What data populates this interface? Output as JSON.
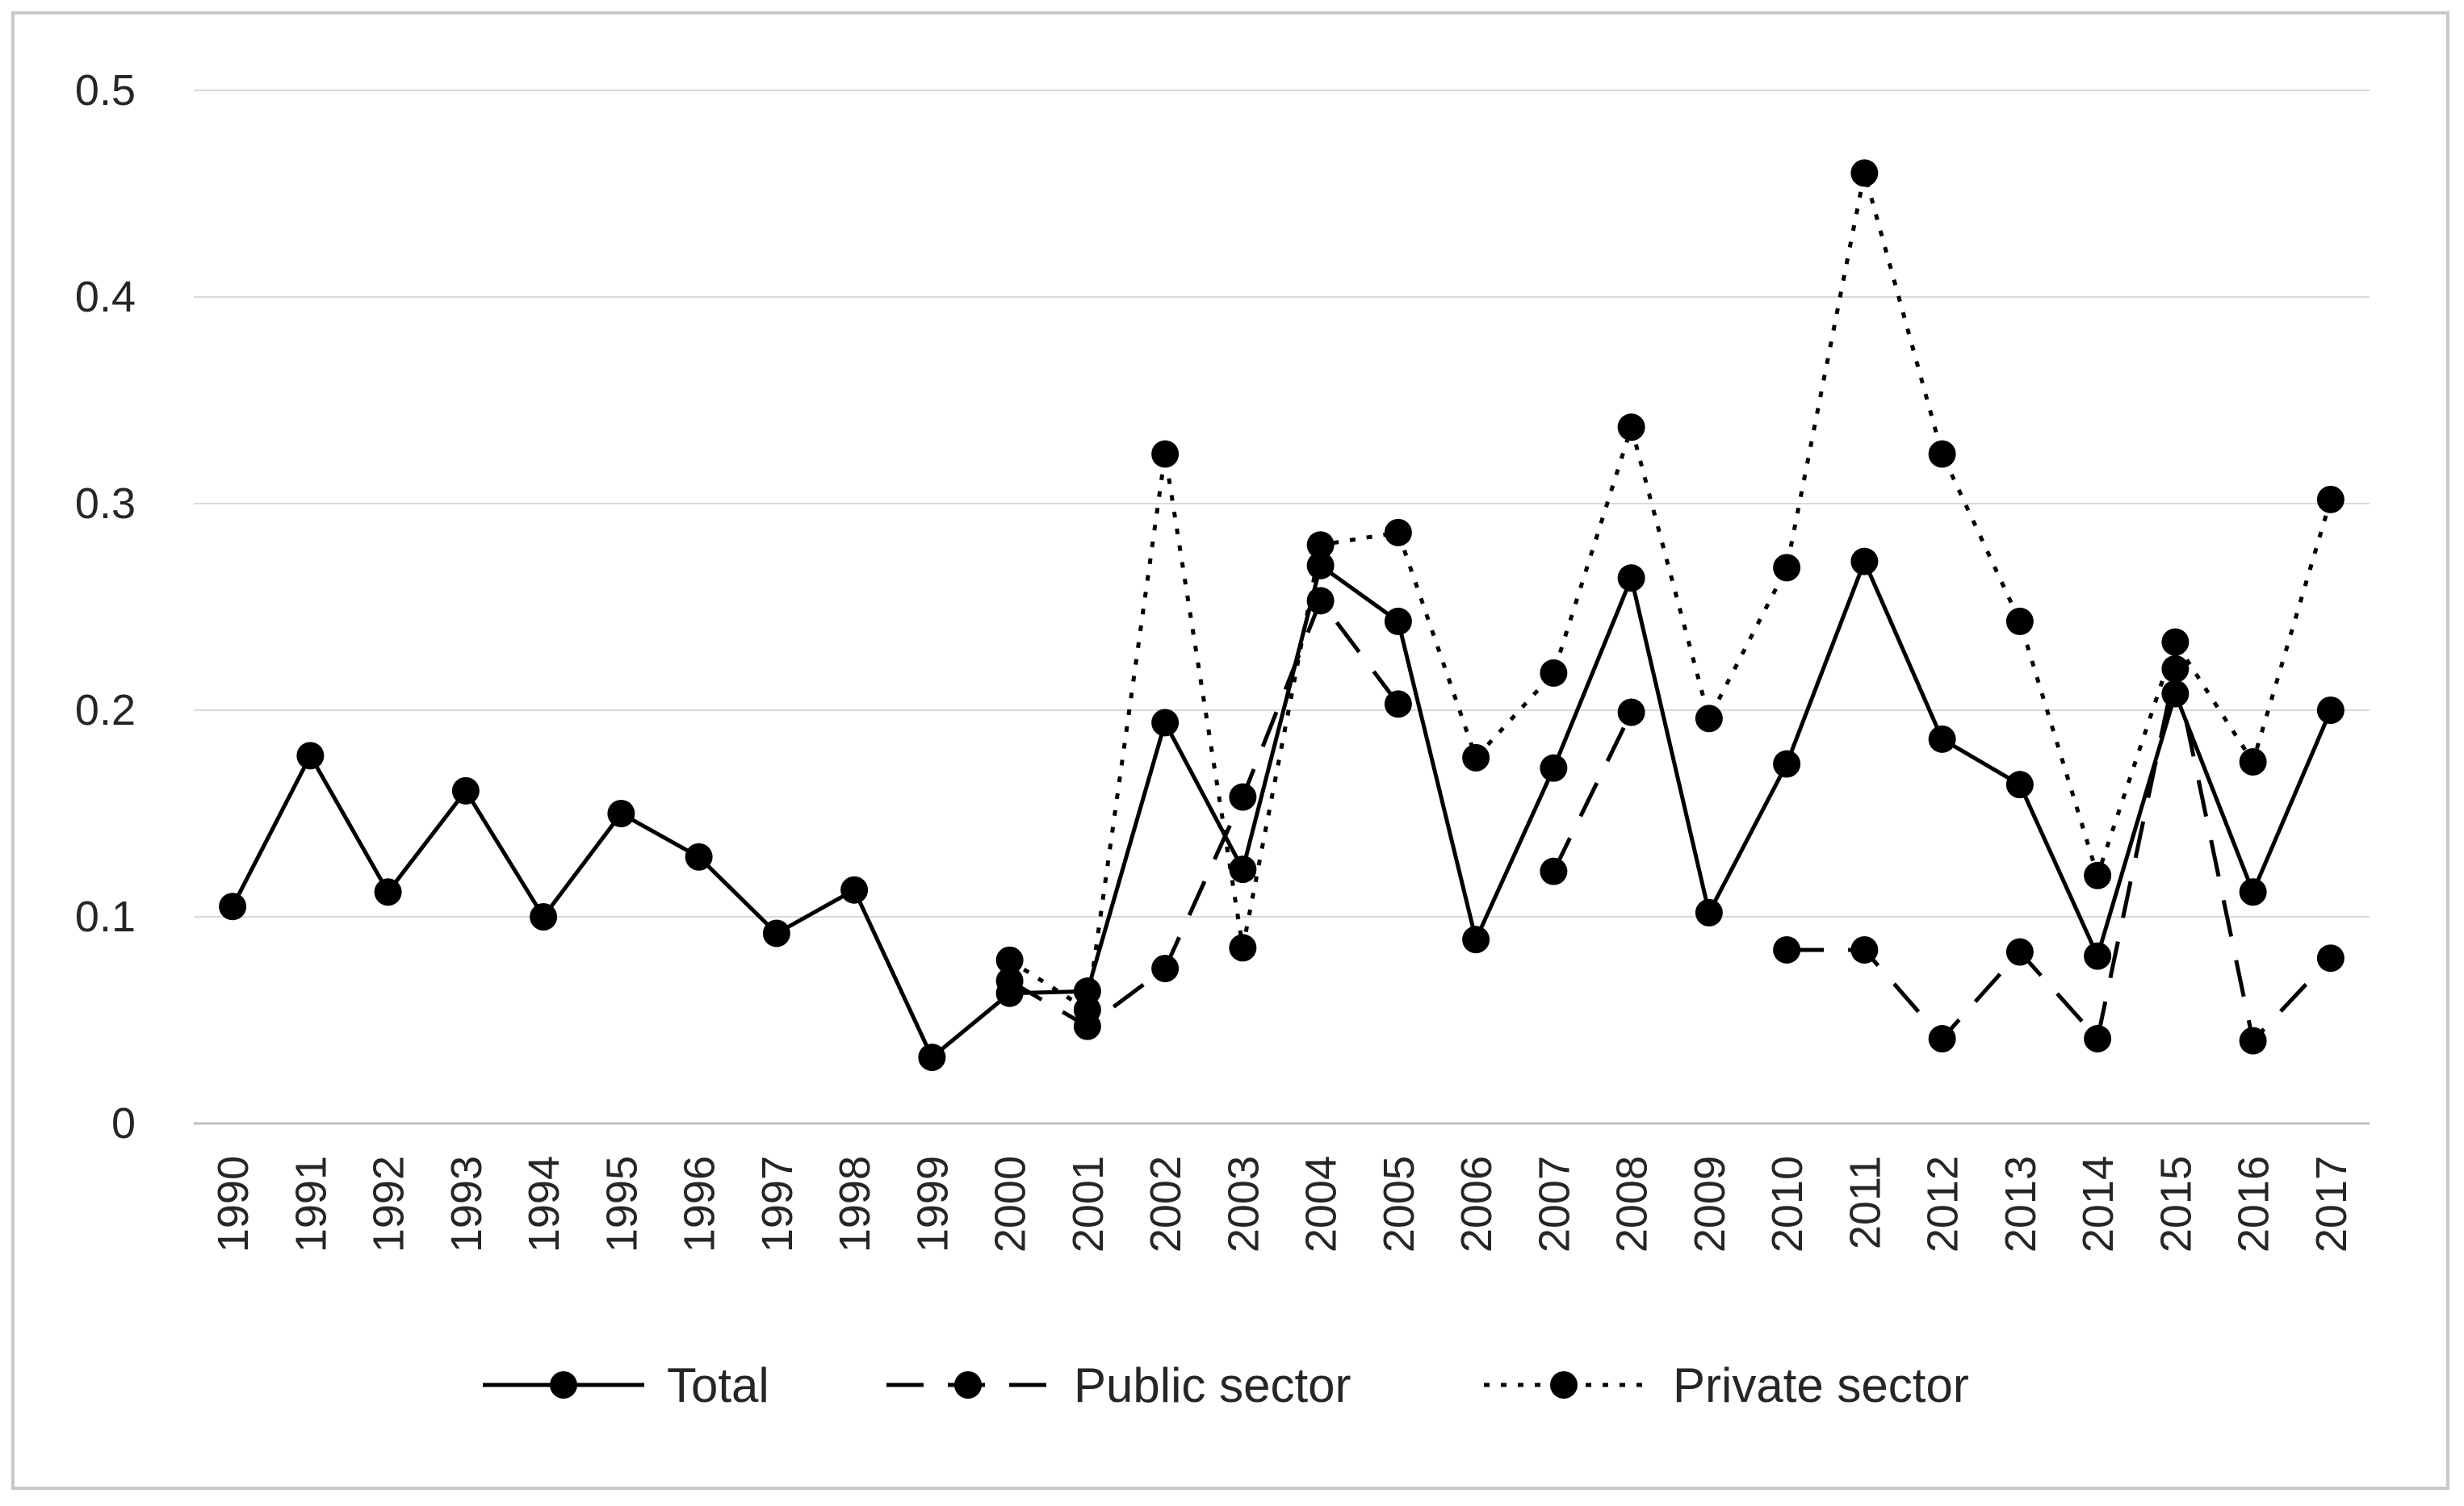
{
  "chart_data": {
    "type": "line",
    "title": "",
    "xlabel": "",
    "ylabel": "",
    "x": [
      "1990",
      "1991",
      "1992",
      "1993",
      "1994",
      "1995",
      "1996",
      "1997",
      "1998",
      "1999",
      "2000",
      "2001",
      "2002",
      "2003",
      "2004",
      "2005",
      "2006",
      "2007",
      "2008",
      "2009",
      "2010",
      "2011",
      "2012",
      "2013",
      "2014",
      "2015",
      "2016",
      "2017"
    ],
    "ylim": [
      0,
      0.5
    ],
    "yticks": [
      "0",
      "0.1",
      "0.2",
      "0.3",
      "0.4",
      "0.5"
    ],
    "ytick_values": [
      0,
      0.1,
      0.2,
      0.3,
      0.4,
      0.5
    ],
    "grid": "horizontal",
    "legend_position": "bottom",
    "series": [
      {
        "name": "Total",
        "line_style": "solid",
        "color": "#000000",
        "values": [
          0.105,
          0.178,
          0.112,
          0.161,
          0.1,
          0.15,
          0.129,
          0.092,
          0.113,
          0.032,
          0.063,
          0.064,
          0.194,
          0.123,
          0.27,
          0.243,
          0.089,
          0.172,
          0.264,
          0.102,
          0.174,
          0.272,
          0.186,
          0.164,
          0.081,
          0.208,
          0.112,
          0.2
        ]
      },
      {
        "name": "Public sector",
        "line_style": "dashed",
        "color": "#000000",
        "values": [
          null,
          null,
          null,
          null,
          null,
          null,
          null,
          null,
          null,
          null,
          0.069,
          0.047,
          0.075,
          0.158,
          0.253,
          0.203,
          null,
          0.122,
          0.199,
          null,
          0.084,
          0.084,
          0.041,
          0.083,
          0.041,
          0.22,
          0.04,
          0.08
        ]
      },
      {
        "name": "Private sector",
        "line_style": "dotted",
        "color": "#000000",
        "values": [
          null,
          null,
          null,
          null,
          null,
          null,
          null,
          null,
          null,
          null,
          0.079,
          0.055,
          0.324,
          0.085,
          0.28,
          0.286,
          0.177,
          0.218,
          0.337,
          0.196,
          0.269,
          0.46,
          0.324,
          0.243,
          0.12,
          0.233,
          0.175,
          0.302
        ]
      }
    ]
  }
}
